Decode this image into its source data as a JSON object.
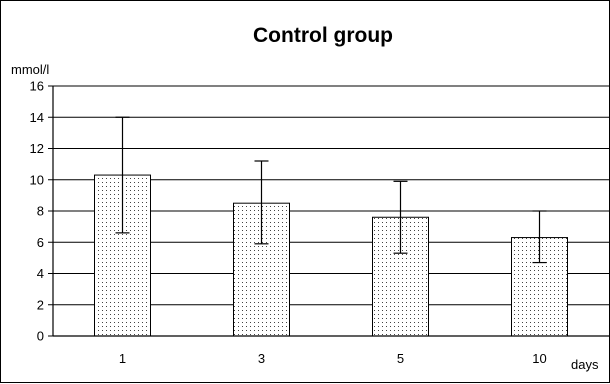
{
  "chart_data": {
    "type": "bar",
    "title": "Control group",
    "ylabel": "mmol/l",
    "xlabel": "days",
    "categories": [
      "1",
      "3",
      "5",
      "10"
    ],
    "values": [
      10.3,
      8.5,
      7.6,
      6.3
    ],
    "error_low": [
      6.6,
      5.9,
      5.3,
      4.7
    ],
    "error_high": [
      14.0,
      11.2,
      9.9,
      8.0
    ],
    "ylim": [
      0,
      16
    ],
    "yticks": [
      "0",
      "2",
      "4",
      "6",
      "8",
      "10",
      "12",
      "14",
      "16"
    ],
    "grid": true,
    "legend": "none",
    "bar_pattern": "dotted"
  }
}
